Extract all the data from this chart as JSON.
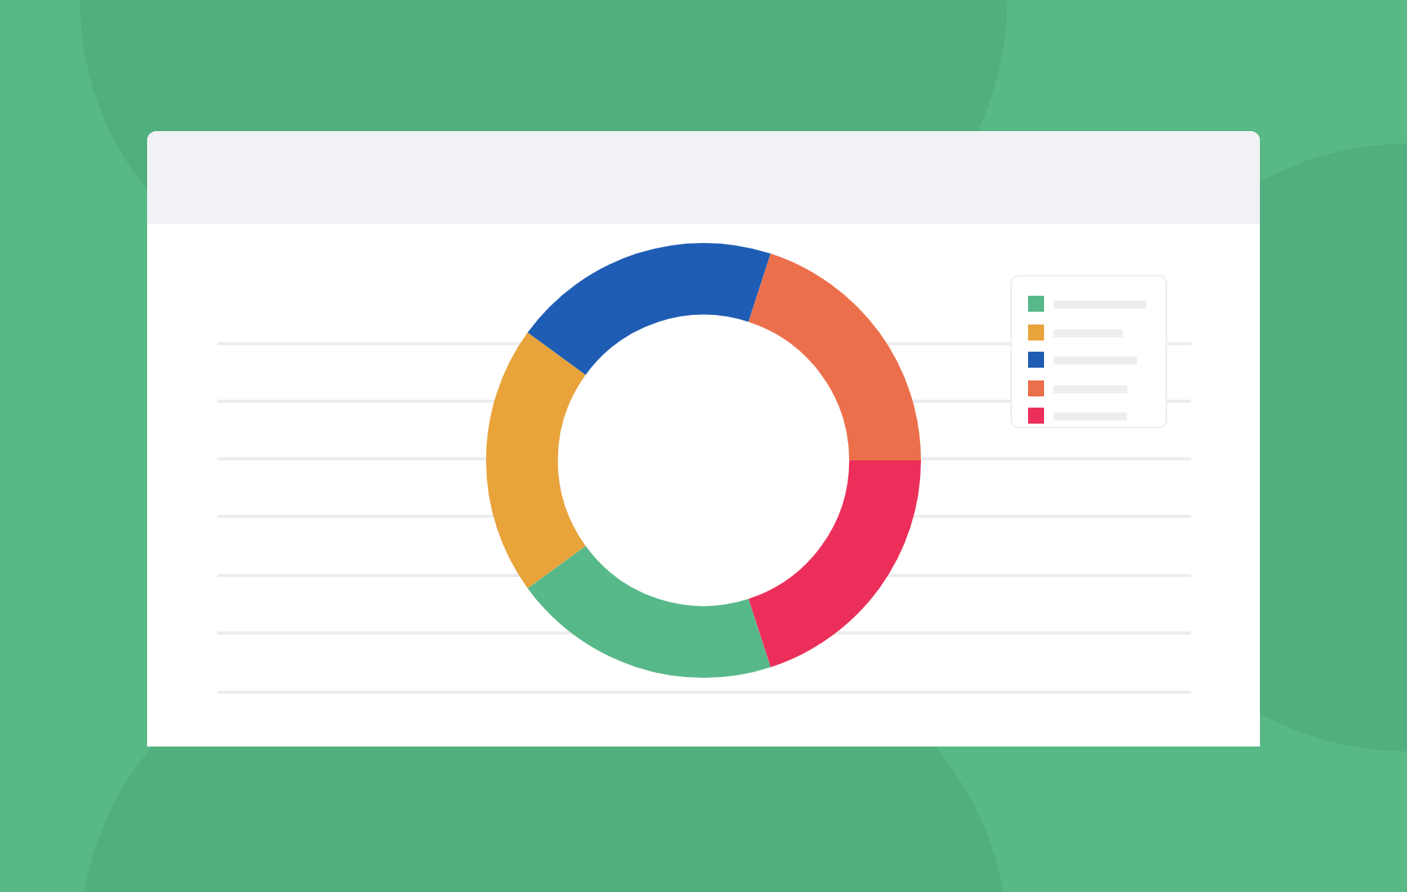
{
  "chart_data": {
    "type": "donut",
    "categories": [
      null,
      null,
      null,
      null,
      null
    ],
    "values": [
      20,
      20,
      20,
      20,
      20
    ],
    "colors": [
      "#57b889",
      "#e8a33a",
      "#1f5db5",
      "#ec6f4c",
      "#ec2f5a"
    ]
  }
}
